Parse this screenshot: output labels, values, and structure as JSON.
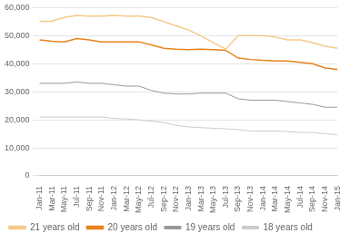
{
  "chart_data": {
    "type": "line",
    "categories": [
      "Jan-11",
      "Mar-11",
      "May-11",
      "Jul-11",
      "Sep-11",
      "Nov-11",
      "Jan-12",
      "Mar-12",
      "May-12",
      "Jul-12",
      "Sep-12",
      "Nov-12",
      "Jan-13",
      "Mar-13",
      "May-13",
      "Jul-13",
      "Sep-13",
      "Nov-13",
      "Jan-14",
      "Mar-14",
      "May-14",
      "Jul-14",
      "Sep-14",
      "Nov-14",
      "Jan-15"
    ],
    "series": [
      {
        "name": "18 years old",
        "color": "#cccccc",
        "values": [
          21000,
          21000,
          21000,
          21000,
          21000,
          21000,
          20500,
          20300,
          20000,
          19500,
          19000,
          18000,
          17500,
          17200,
          17000,
          16800,
          16500,
          16000,
          16000,
          16000,
          15800,
          15500,
          15500,
          15000,
          14700
        ]
      },
      {
        "name": "19 years old",
        "color": "#999999",
        "values": [
          33000,
          33000,
          33000,
          33500,
          33000,
          33000,
          32500,
          32000,
          32000,
          30500,
          29500,
          29200,
          29200,
          29500,
          29500,
          29500,
          27500,
          27000,
          27000,
          27000,
          26500,
          26000,
          25500,
          24500,
          24500
        ]
      },
      {
        "name": "20 years old",
        "color": "#e8821e",
        "values": [
          48500,
          48000,
          47800,
          49000,
          48500,
          47800,
          47800,
          47800,
          47800,
          46700,
          45500,
          45200,
          45000,
          45200,
          45000,
          44800,
          42000,
          41500,
          41200,
          41000,
          41000,
          40500,
          40000,
          38500,
          38000
        ]
      },
      {
        "name": "21 years old",
        "color": "#f5c98a",
        "values": [
          55000,
          55200,
          56500,
          57200,
          57000,
          57000,
          57200,
          57000,
          57000,
          56500,
          55000,
          53500,
          52000,
          50000,
          47500,
          45200,
          50000,
          50000,
          50000,
          49500,
          48500,
          48500,
          47500,
          46200,
          45500
        ]
      }
    ],
    "ylim": [
      0,
      60000
    ],
    "yticks": [
      0,
      {
        "value": 10000,
        "label": "10,000"
      },
      {
        "value": 20000,
        "label": "20,000"
      },
      {
        "value": 30000,
        "label": "30,000"
      },
      {
        "value": 40000,
        "label": "40,000"
      },
      {
        "value": 50000,
        "label": "50,000"
      },
      {
        "value": 60000,
        "label": "60,000"
      }
    ],
    "grid": true,
    "legend": "bottom"
  }
}
